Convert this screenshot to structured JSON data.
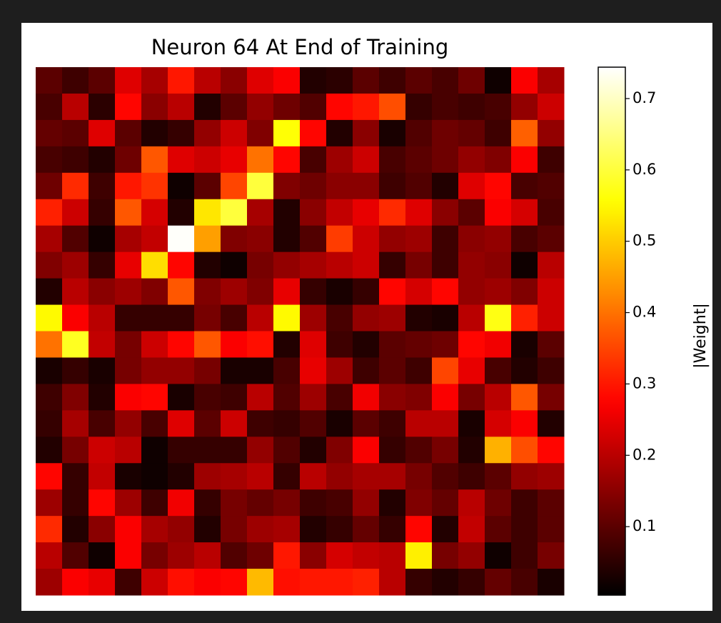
{
  "chart_data": {
    "type": "heatmap",
    "title": "Neuron 64 At End of Training",
    "colormap": "hot",
    "colorbar": {
      "label": "|Weight|",
      "lim": [
        0.004,
        0.744
      ],
      "ticks": [
        0.1,
        0.2,
        0.3,
        0.4,
        0.5,
        0.6,
        0.7
      ]
    },
    "values": [
      [
        0.1,
        0.07,
        0.1,
        0.24,
        0.18,
        0.3,
        0.2,
        0.15,
        0.24,
        0.27,
        0.04,
        0.05,
        0.1,
        0.07,
        0.1,
        0.08,
        0.12,
        0.02,
        0.27,
        0.18
      ],
      [
        0.08,
        0.2,
        0.05,
        0.28,
        0.15,
        0.2,
        0.04,
        0.1,
        0.16,
        0.12,
        0.09,
        0.28,
        0.3,
        0.36,
        0.06,
        0.08,
        0.07,
        0.08,
        0.16,
        0.22
      ],
      [
        0.11,
        0.1,
        0.24,
        0.1,
        0.04,
        0.06,
        0.16,
        0.22,
        0.14,
        0.56,
        0.28,
        0.04,
        0.15,
        0.03,
        0.09,
        0.12,
        0.11,
        0.07,
        0.38,
        0.16
      ],
      [
        0.08,
        0.07,
        0.04,
        0.12,
        0.37,
        0.24,
        0.22,
        0.25,
        0.4,
        0.28,
        0.08,
        0.17,
        0.22,
        0.08,
        0.1,
        0.12,
        0.16,
        0.14,
        0.27,
        0.07
      ],
      [
        0.12,
        0.32,
        0.07,
        0.3,
        0.33,
        0.02,
        0.1,
        0.35,
        0.6,
        0.14,
        0.12,
        0.15,
        0.15,
        0.07,
        0.09,
        0.04,
        0.24,
        0.28,
        0.08,
        0.09
      ],
      [
        0.31,
        0.22,
        0.06,
        0.37,
        0.23,
        0.04,
        0.53,
        0.6,
        0.18,
        0.04,
        0.15,
        0.21,
        0.25,
        0.32,
        0.24,
        0.15,
        0.1,
        0.27,
        0.23,
        0.08
      ],
      [
        0.18,
        0.09,
        0.02,
        0.18,
        0.21,
        0.74,
        0.45,
        0.14,
        0.15,
        0.04,
        0.09,
        0.34,
        0.22,
        0.16,
        0.17,
        0.07,
        0.15,
        0.16,
        0.08,
        0.1
      ],
      [
        0.14,
        0.17,
        0.06,
        0.25,
        0.52,
        0.28,
        0.04,
        0.02,
        0.13,
        0.16,
        0.18,
        0.2,
        0.22,
        0.06,
        0.13,
        0.07,
        0.16,
        0.15,
        0.02,
        0.2
      ],
      [
        0.04,
        0.2,
        0.15,
        0.17,
        0.14,
        0.37,
        0.14,
        0.17,
        0.14,
        0.25,
        0.06,
        0.03,
        0.06,
        0.28,
        0.23,
        0.28,
        0.16,
        0.17,
        0.14,
        0.22
      ],
      [
        0.55,
        0.27,
        0.2,
        0.06,
        0.06,
        0.06,
        0.13,
        0.08,
        0.2,
        0.55,
        0.17,
        0.08,
        0.16,
        0.17,
        0.04,
        0.03,
        0.2,
        0.57,
        0.31,
        0.22
      ],
      [
        0.4,
        0.58,
        0.21,
        0.13,
        0.22,
        0.28,
        0.37,
        0.27,
        0.29,
        0.04,
        0.24,
        0.07,
        0.04,
        0.1,
        0.11,
        0.12,
        0.28,
        0.26,
        0.03,
        0.1
      ],
      [
        0.03,
        0.06,
        0.03,
        0.13,
        0.16,
        0.16,
        0.13,
        0.03,
        0.03,
        0.08,
        0.25,
        0.17,
        0.07,
        0.1,
        0.07,
        0.35,
        0.25,
        0.08,
        0.04,
        0.07
      ],
      [
        0.07,
        0.14,
        0.04,
        0.27,
        0.28,
        0.03,
        0.08,
        0.07,
        0.2,
        0.09,
        0.17,
        0.08,
        0.26,
        0.15,
        0.14,
        0.27,
        0.13,
        0.2,
        0.37,
        0.13
      ],
      [
        0.06,
        0.18,
        0.08,
        0.16,
        0.08,
        0.24,
        0.1,
        0.22,
        0.07,
        0.06,
        0.09,
        0.03,
        0.1,
        0.07,
        0.2,
        0.2,
        0.03,
        0.23,
        0.27,
        0.04
      ],
      [
        0.04,
        0.13,
        0.22,
        0.2,
        0.02,
        0.06,
        0.06,
        0.06,
        0.16,
        0.09,
        0.04,
        0.14,
        0.27,
        0.06,
        0.09,
        0.13,
        0.04,
        0.47,
        0.36,
        0.28
      ],
      [
        0.28,
        0.06,
        0.21,
        0.03,
        0.02,
        0.04,
        0.17,
        0.18,
        0.2,
        0.06,
        0.2,
        0.16,
        0.18,
        0.18,
        0.13,
        0.09,
        0.07,
        0.1,
        0.16,
        0.17
      ],
      [
        0.17,
        0.06,
        0.28,
        0.17,
        0.07,
        0.26,
        0.06,
        0.13,
        0.11,
        0.13,
        0.07,
        0.08,
        0.16,
        0.04,
        0.14,
        0.11,
        0.2,
        0.12,
        0.07,
        0.1
      ],
      [
        0.32,
        0.04,
        0.15,
        0.27,
        0.18,
        0.16,
        0.04,
        0.13,
        0.17,
        0.18,
        0.04,
        0.06,
        0.11,
        0.06,
        0.28,
        0.04,
        0.21,
        0.1,
        0.07,
        0.1
      ],
      [
        0.2,
        0.09,
        0.02,
        0.27,
        0.13,
        0.17,
        0.2,
        0.09,
        0.12,
        0.3,
        0.15,
        0.23,
        0.21,
        0.2,
        0.54,
        0.13,
        0.16,
        0.02,
        0.07,
        0.13
      ],
      [
        0.17,
        0.27,
        0.25,
        0.07,
        0.22,
        0.29,
        0.27,
        0.28,
        0.48,
        0.29,
        0.3,
        0.3,
        0.31,
        0.2,
        0.06,
        0.04,
        0.06,
        0.11,
        0.08,
        0.03
      ]
    ]
  }
}
